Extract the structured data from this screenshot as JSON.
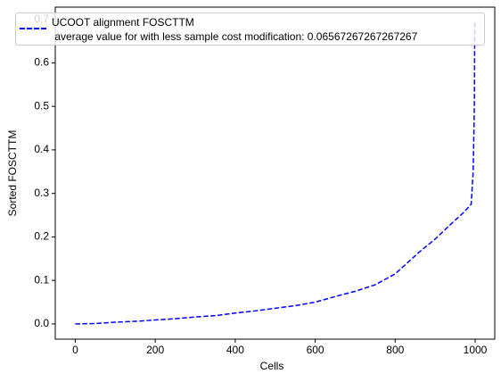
{
  "chart_data": {
    "type": "line",
    "xlabel": "Cells",
    "ylabel": "Sorted FOSCTTM",
    "x": [
      0,
      50,
      100,
      150,
      200,
      250,
      300,
      350,
      400,
      450,
      500,
      550,
      600,
      650,
      700,
      750,
      800,
      830,
      860,
      900,
      940,
      970,
      990,
      995,
      998,
      999
    ],
    "series": [
      {
        "name": "UCOOT alignment FOSCTTM\n average value for with less sample cost modification: 0.06567267267267267",
        "color": "#0000ff",
        "values": [
          0,
          0.001,
          0.004,
          0.006,
          0.009,
          0.012,
          0.016,
          0.019,
          0.025,
          0.03,
          0.036,
          0.042,
          0.05,
          0.063,
          0.075,
          0.09,
          0.115,
          0.14,
          0.165,
          0.195,
          0.23,
          0.255,
          0.275,
          0.35,
          0.5,
          0.693
        ]
      }
    ],
    "xlim": [
      -50,
      1049
    ],
    "xticks": [
      0,
      200,
      400,
      600,
      800,
      1000
    ],
    "ylim": [
      -0.035,
      0.728
    ],
    "yticks": [
      {
        "value": 0,
        "label": "0.0"
      },
      0.1,
      0.2,
      0.3,
      0.4,
      0.5,
      0.6,
      0.7
    ],
    "line_style": "dashed",
    "legend": "upper left"
  }
}
